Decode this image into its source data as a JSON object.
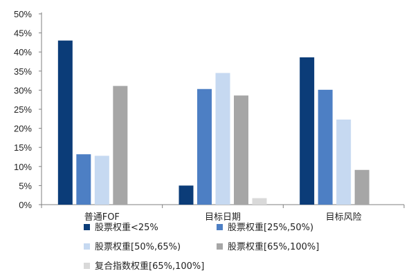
{
  "chart_data": {
    "type": "bar",
    "categories": [
      "普通FOF",
      "目标日期",
      "目标风险"
    ],
    "y_ticks": [
      "0%",
      "5%",
      "10%",
      "15%",
      "20%",
      "25%",
      "30%",
      "35%",
      "40%",
      "45%",
      "50%"
    ],
    "ylim": [
      0,
      50
    ],
    "grid": false,
    "legend_position": "bottom",
    "series": [
      {
        "name": "股票权重<25%",
        "color": "#0b3c78",
        "values": [
          43.0,
          5.0,
          38.6
        ]
      },
      {
        "name": "股票权重[25%,50%)",
        "color": "#4d7fc4",
        "values": [
          13.2,
          30.3,
          30.1
        ]
      },
      {
        "name": "股票权重[50%,65%)",
        "color": "#c6d9f1",
        "values": [
          12.8,
          34.5,
          22.3
        ]
      },
      {
        "name": "股票权重[65%,100%]",
        "color": "#a6a6a6",
        "values": [
          31.1,
          28.6,
          9.1
        ]
      },
      {
        "name": "复合指数权重[65%,100%]",
        "color": "#d9d9d9",
        "values": [
          0,
          1.7,
          0
        ]
      }
    ]
  }
}
